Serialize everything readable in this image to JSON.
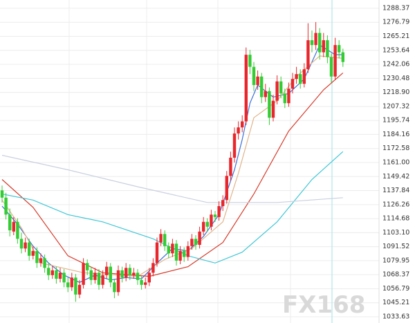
{
  "chart_data": {
    "type": "candlestick",
    "watermark": "FX168",
    "up_color": "#e8262c",
    "down_color": "#33cc33",
    "ylim": [
      1028.5,
      1295.2
    ],
    "yticks": [
      1288.37,
      1276.79,
      1265.21,
      1253.64,
      1242.06,
      1230.48,
      {
        "value": 1218.9,
        "label": "1218.90"
      },
      1207.32,
      1195.74,
      1184.16,
      1172.58,
      {
        "value": 1161,
        "label": "1161.00"
      },
      1149.42,
      1137.84,
      1126.26,
      1114.68,
      {
        "value": 1103.1,
        "label": "1103.10"
      },
      1091.52,
      1079.95,
      1068.37,
      1056.79,
      1045.21,
      1033.63
    ],
    "grid": true,
    "open": [
      1138,
      1132,
      1118,
      1104,
      1112,
      1098,
      1090,
      1095,
      1084,
      1088,
      1078,
      1082,
      1074,
      1068,
      1072,
      1065,
      1070,
      1062,
      1058,
      1066,
      1052,
      1060,
      1078,
      1072,
      1064,
      1070,
      1060,
      1068,
      1075,
      1062,
      1054,
      1072,
      1066,
      1074,
      1068,
      1070,
      1064,
      1060,
      1062,
      1070,
      1078,
      1095,
      1102,
      1092,
      1086,
      1094,
      1080,
      1088,
      1083,
      1092,
      1098,
      1093,
      1104,
      1112,
      1108,
      1118,
      1116,
      1125,
      1130,
      1150,
      1165,
      1185,
      1190,
      1195,
      1250,
      1240,
      1225,
      1232,
      1215,
      1220,
      1198,
      1212,
      1228,
      1218,
      1210,
      1222,
      1230,
      1234,
      1226,
      1238,
      1262,
      1258,
      1268,
      1252,
      1262,
      1248,
      1232,
      1258,
      1252
    ],
    "high": [
      1142,
      1136,
      1123,
      1116,
      1115,
      1103,
      1099,
      1098,
      1092,
      1091,
      1086,
      1085,
      1078,
      1076,
      1075,
      1074,
      1073,
      1066,
      1070,
      1069,
      1064,
      1082,
      1081,
      1075,
      1074,
      1073,
      1072,
      1079,
      1078,
      1065,
      1076,
      1075,
      1078,
      1077,
      1074,
      1073,
      1067,
      1066,
      1074,
      1082,
      1099,
      1106,
      1105,
      1095,
      1098,
      1097,
      1092,
      1091,
      1096,
      1102,
      1101,
      1108,
      1116,
      1115,
      1122,
      1121,
      1129,
      1134,
      1154,
      1170,
      1190,
      1195,
      1200,
      1256,
      1254,
      1244,
      1237,
      1235,
      1226,
      1223,
      1217,
      1233,
      1232,
      1222,
      1227,
      1235,
      1240,
      1238,
      1243,
      1276,
      1270,
      1277,
      1272,
      1268,
      1266,
      1251,
      1264,
      1262,
      1255
    ],
    "low": [
      1128,
      1114,
      1100,
      1101,
      1094,
      1086,
      1087,
      1080,
      1081,
      1074,
      1075,
      1070,
      1064,
      1065,
      1061,
      1062,
      1058,
      1054,
      1055,
      1046,
      1049,
      1057,
      1068,
      1060,
      1061,
      1056,
      1057,
      1065,
      1058,
      1049,
      1051,
      1062,
      1063,
      1064,
      1065,
      1060,
      1056,
      1057,
      1059,
      1067,
      1075,
      1092,
      1088,
      1082,
      1083,
      1076,
      1077,
      1079,
      1080,
      1089,
      1089,
      1090,
      1101,
      1104,
      1105,
      1112,
      1113,
      1121,
      1127,
      1146,
      1161,
      1180,
      1186,
      1192,
      1234,
      1220,
      1221,
      1210,
      1211,
      1192,
      1195,
      1209,
      1214,
      1206,
      1207,
      1218,
      1226,
      1222,
      1223,
      1235,
      1252,
      1254,
      1246,
      1248,
      1243,
      1227,
      1229,
      1247,
      1240
    ],
    "close": [
      1132,
      1118,
      1105,
      1112,
      1098,
      1090,
      1095,
      1084,
      1088,
      1078,
      1082,
      1074,
      1068,
      1072,
      1065,
      1070,
      1062,
      1058,
      1066,
      1052,
      1060,
      1078,
      1072,
      1064,
      1070,
      1060,
      1068,
      1075,
      1062,
      1054,
      1072,
      1066,
      1074,
      1068,
      1070,
      1064,
      1060,
      1062,
      1070,
      1078,
      1095,
      1102,
      1092,
      1086,
      1094,
      1080,
      1088,
      1083,
      1092,
      1098,
      1093,
      1104,
      1112,
      1108,
      1118,
      1116,
      1125,
      1130,
      1150,
      1165,
      1185,
      1190,
      1195,
      1250,
      1240,
      1225,
      1232,
      1215,
      1220,
      1198,
      1212,
      1228,
      1218,
      1210,
      1222,
      1230,
      1234,
      1226,
      1238,
      1262,
      1258,
      1268,
      1252,
      1262,
      1248,
      1232,
      1258,
      1252,
      1244
    ],
    "series": [
      {
        "color": "#c8cfe0",
        "x": [
          0,
          17,
          35,
          53,
          71,
          88
        ],
        "values": [
          1167,
          1155,
          1141,
          1128,
          1128,
          1132
        ]
      },
      {
        "color": "#3fc7d6",
        "x": [
          0,
          8,
          17,
          26,
          39,
          48,
          55,
          62,
          71,
          80,
          88
        ],
        "values": [
          1135,
          1130,
          1118,
          1112,
          1098,
          1084,
          1078,
          1087,
          1112,
          1147,
          1170
        ]
      },
      {
        "color": "#d63a2a",
        "x": [
          0,
          8,
          17,
          26,
          38,
          48,
          57,
          65,
          74,
          83,
          88
        ],
        "values": [
          1147,
          1124,
          1084,
          1070,
          1067,
          1075,
          1095,
          1135,
          1187,
          1221,
          1235
        ]
      },
      {
        "color": "#e0b48a",
        "x": [
          0,
          5,
          10,
          21,
          35,
          42,
          49,
          57,
          61,
          65,
          71,
          76,
          82,
          88
        ],
        "values": [
          1130,
          1107,
          1078,
          1070,
          1067,
          1081,
          1090,
          1112,
          1152,
          1198,
          1212,
          1232,
          1249,
          1247
        ]
      },
      {
        "color": "#3a6fd8",
        "x": [
          0,
          4,
          8,
          12,
          16,
          20,
          24,
          28,
          32,
          36,
          40,
          44,
          48,
          52,
          56,
          60,
          62,
          64,
          66,
          70,
          74,
          78,
          82,
          86,
          88
        ],
        "values": [
          1125,
          1110,
          1092,
          1078,
          1068,
          1062,
          1068,
          1064,
          1066,
          1065,
          1078,
          1090,
          1088,
          1100,
          1118,
          1155,
          1180,
          1210,
          1225,
          1215,
          1218,
          1230,
          1258,
          1250,
          1250
        ]
      }
    ]
  }
}
